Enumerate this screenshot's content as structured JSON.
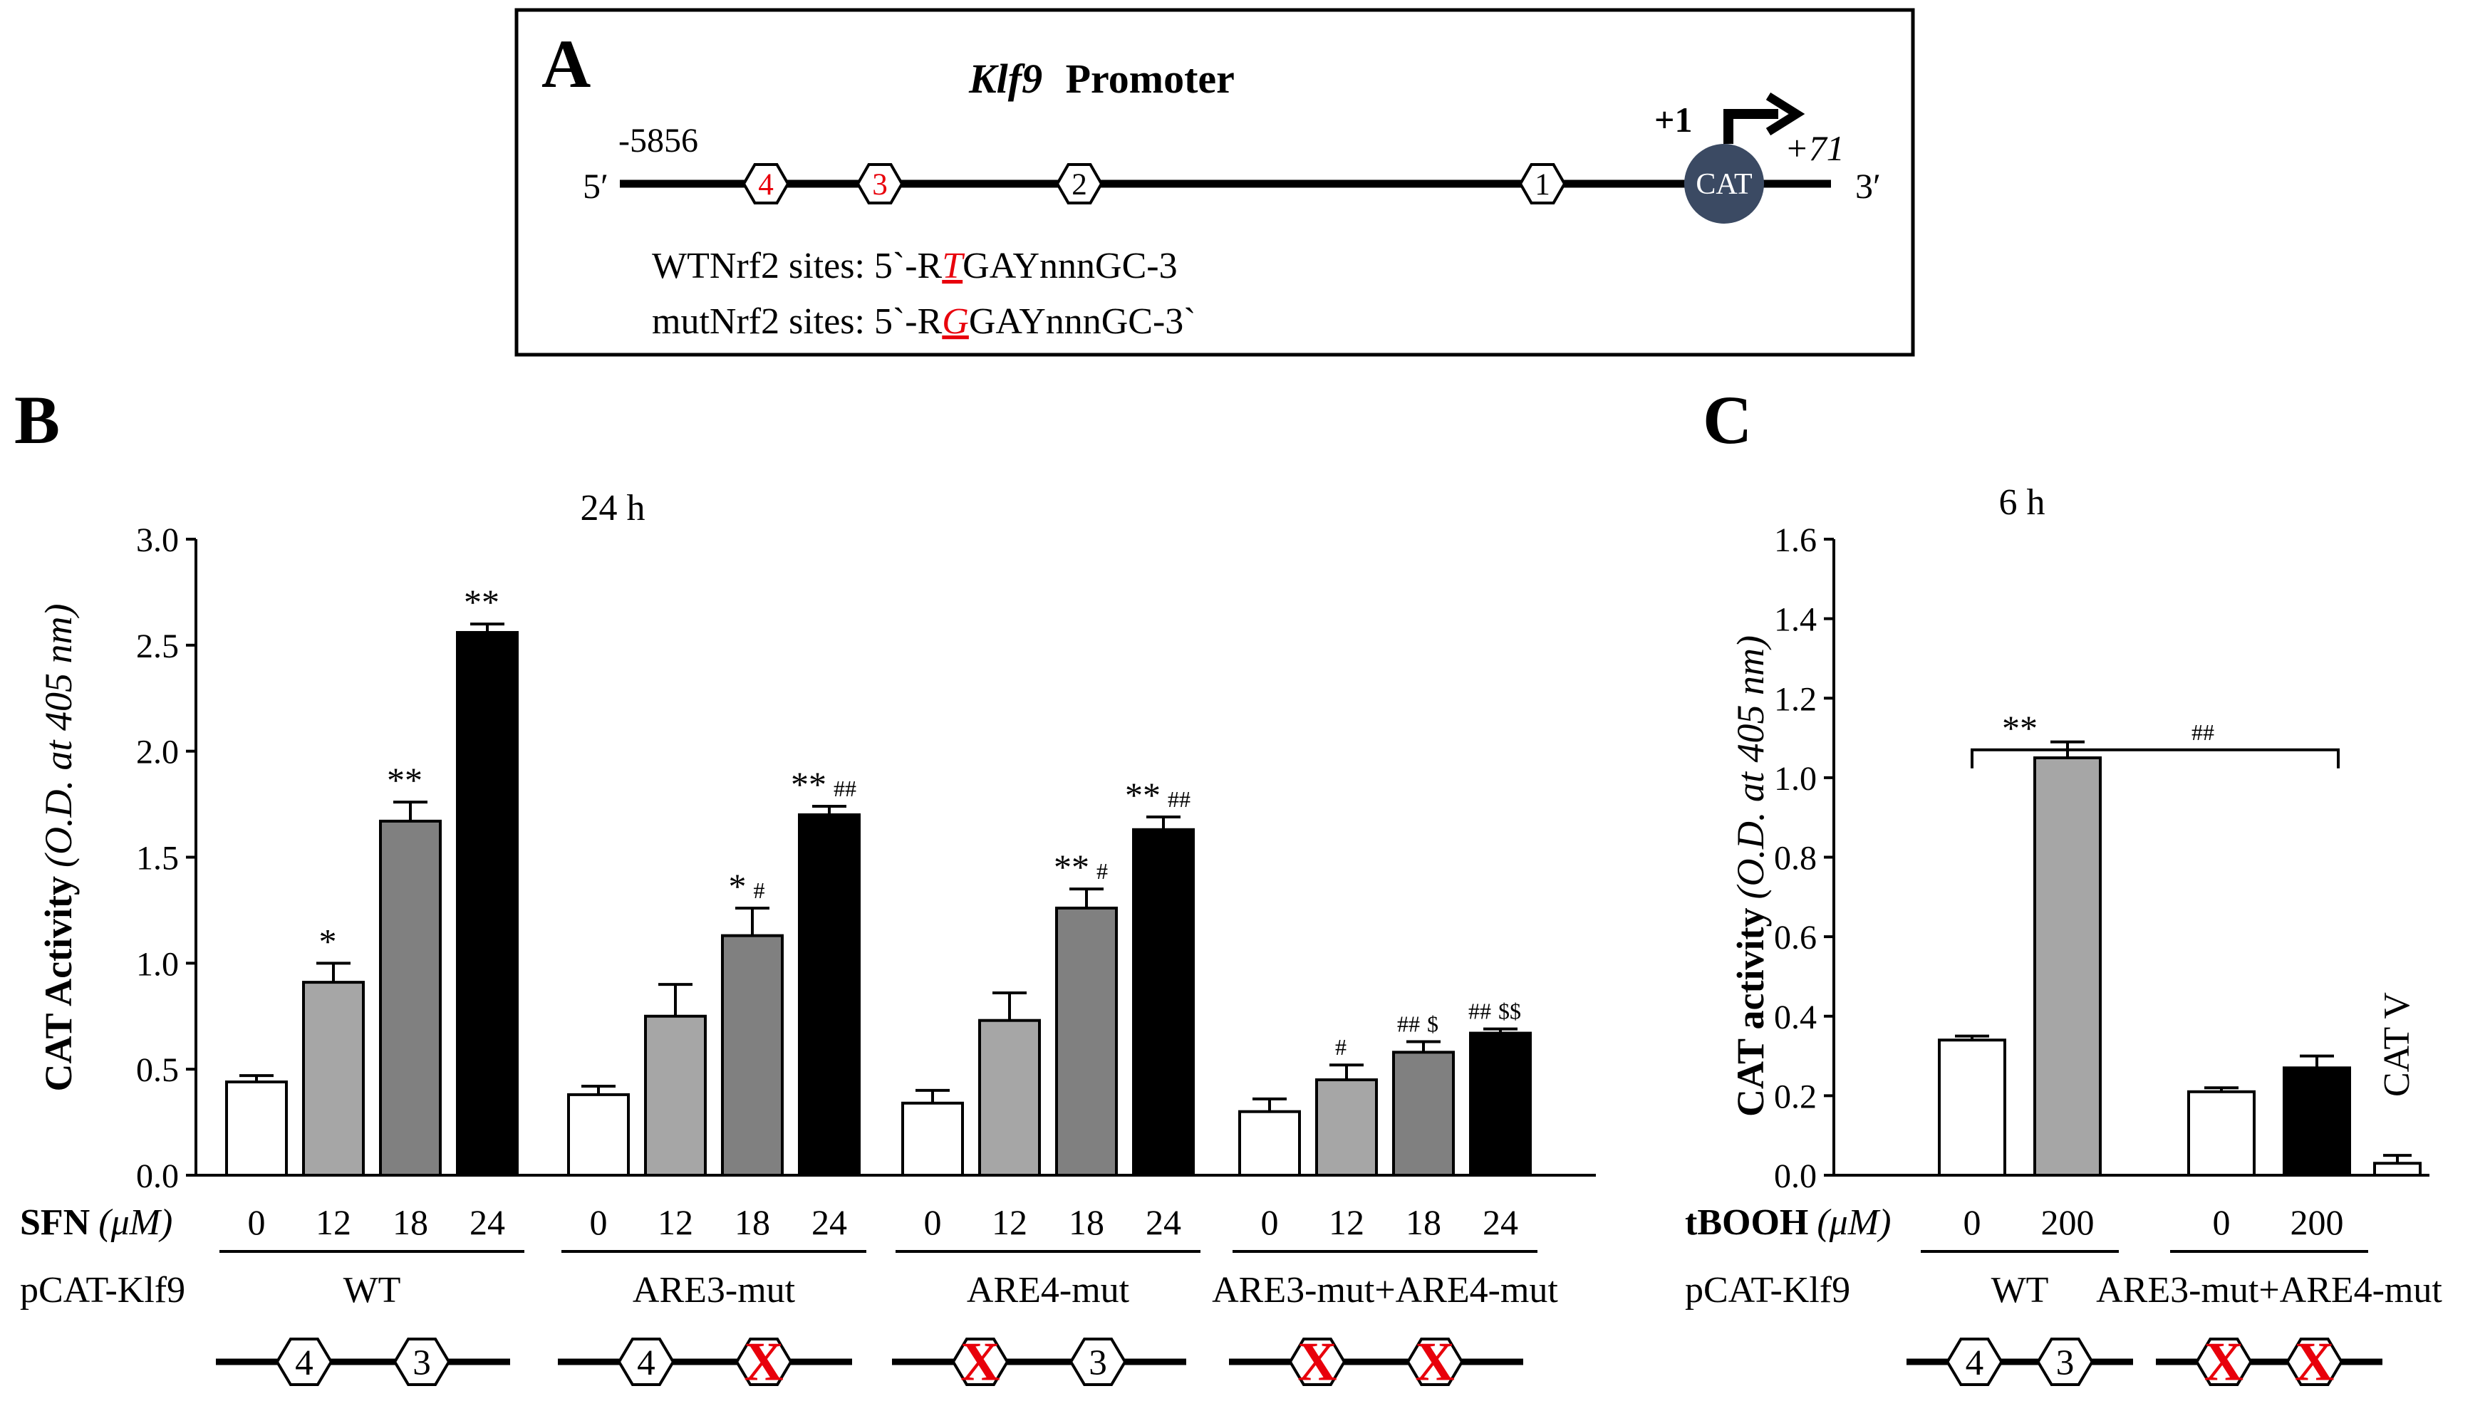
{
  "panel_a": {
    "letter": "A",
    "title_gene": "Klf9",
    "title_rest": "Promoter",
    "start_pos": "-5856",
    "five_prime": "5′",
    "three_prime": "3′",
    "tss": "+1",
    "end_pos": "+71",
    "reporter": "CAT",
    "sites": [
      {
        "label": "4",
        "color": "#e8000b"
      },
      {
        "label": "3",
        "color": "#e8000b"
      },
      {
        "label": "2",
        "color": "#000000"
      },
      {
        "label": "1",
        "color": "#000000"
      }
    ],
    "wt_line": {
      "pre": "WTNrf2 sites: 5`-R",
      "base": "T",
      "post": "GAYnnnGC-3"
    },
    "mut_line": {
      "pre": "mutNrf2 sites: 5`-R",
      "base": "G",
      "post": "GAYnnnGC-3`"
    }
  },
  "chart_data": [
    {
      "panel": "B",
      "type": "bar",
      "title": "24 h",
      "ylabel_bold": "CAT Activity",
      "ylabel_italic": "(O.D. at 405 nm)",
      "ylim": [
        0,
        3.0
      ],
      "yticks": [
        "0.0",
        "0.5",
        "1.0",
        "1.5",
        "2.0",
        "2.5",
        "3.0"
      ],
      "treatment_label": "SFN",
      "treatment_unit": "(μM)",
      "construct_label": "pCAT-Klf9",
      "groups": [
        {
          "construct": "WT",
          "doses": [
            "0",
            "12",
            "18",
            "24"
          ],
          "values": [
            0.44,
            0.91,
            1.67,
            2.56
          ],
          "errors": [
            0.03,
            0.09,
            0.09,
            0.04
          ],
          "annotations": [
            "",
            "*",
            "**",
            "**"
          ],
          "diagram": [
            "4",
            "3"
          ]
        },
        {
          "construct": "ARE3-mut",
          "doses": [
            "0",
            "12",
            "18",
            "24"
          ],
          "values": [
            0.38,
            0.75,
            1.13,
            1.7
          ],
          "errors": [
            0.04,
            0.15,
            0.13,
            0.04
          ],
          "annotations": [
            "",
            "",
            "* #",
            "** ##"
          ],
          "diagram": [
            "4",
            "X"
          ]
        },
        {
          "construct": "ARE4-mut",
          "doses": [
            "0",
            "12",
            "18",
            "24"
          ],
          "values": [
            0.34,
            0.73,
            1.26,
            1.63
          ],
          "errors": [
            0.06,
            0.13,
            0.09,
            0.06
          ],
          "annotations": [
            "",
            "",
            "** #",
            "** ##"
          ],
          "diagram": [
            "X",
            "3"
          ]
        },
        {
          "construct": "ARE3-mut+ARE4-mut",
          "doses": [
            "0",
            "12",
            "18",
            "24"
          ],
          "values": [
            0.3,
            0.45,
            0.58,
            0.67
          ],
          "errors": [
            0.06,
            0.07,
            0.05,
            0.02
          ],
          "annotations": [
            "",
            "#",
            "## $",
            "## $$"
          ],
          "diagram": [
            "X",
            "X"
          ]
        }
      ],
      "colors": [
        "#ffffff",
        "#a6a6a6",
        "#808080",
        "#000000"
      ]
    },
    {
      "panel": "C",
      "type": "bar",
      "title": "6 h",
      "ylabel_bold": "CAT activity",
      "ylabel_italic": "(O.D. at 405 nm)",
      "ylim": [
        0,
        1.6
      ],
      "yticks": [
        "0.0",
        "0.2",
        "0.4",
        "0.6",
        "0.8",
        "1.0",
        "1.2",
        "1.4",
        "1.6"
      ],
      "treatment_label": "tBOOH",
      "treatment_unit": "(μM)",
      "construct_label": "pCAT-Klf9",
      "groups": [
        {
          "construct": "WT",
          "doses": [
            "0",
            "200"
          ],
          "values": [
            0.34,
            1.05
          ],
          "errors": [
            0.01,
            0.04
          ],
          "diagram": [
            "4",
            "3"
          ]
        },
        {
          "construct": "ARE3-mut+ARE4-mut",
          "doses": [
            "0",
            "200"
          ],
          "values": [
            0.21,
            0.27
          ],
          "errors": [
            0.01,
            0.03
          ],
          "diagram": [
            "X",
            "X"
          ]
        }
      ],
      "control": {
        "label": "CAT V",
        "value": 0.03,
        "error": 0.02
      },
      "brackets": [
        {
          "label": "**"
        },
        {
          "label": "##"
        }
      ],
      "colors": [
        "#ffffff",
        "#a6a6a6",
        "#000000"
      ]
    }
  ]
}
